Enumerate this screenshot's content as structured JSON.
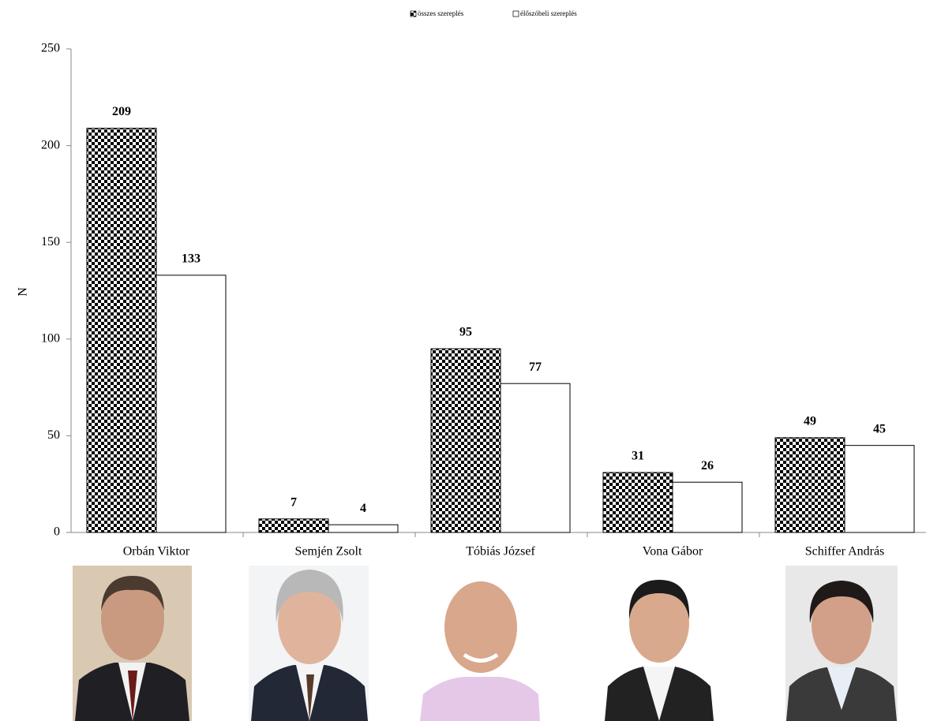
{
  "chart_data": {
    "type": "bar",
    "y_label": "N",
    "categories": [
      "Orbán Viktor",
      "Semjén Zsolt",
      "Tóbiás József",
      "Vona Gábor",
      "Schiffer András"
    ],
    "series": [
      {
        "name": "összes szereplés",
        "color": "#000000",
        "pattern": "checkerboard",
        "values": [
          209,
          7,
          95,
          31,
          49
        ]
      },
      {
        "name": "élőszóbeli szereplés",
        "color": "#ffffff",
        "values": [
          133,
          4,
          77,
          26,
          45
        ]
      }
    ],
    "ylim": [
      0,
      250
    ],
    "yticks": [
      0,
      50,
      100,
      150,
      200,
      250
    ],
    "grid": false,
    "legend": "top"
  }
}
